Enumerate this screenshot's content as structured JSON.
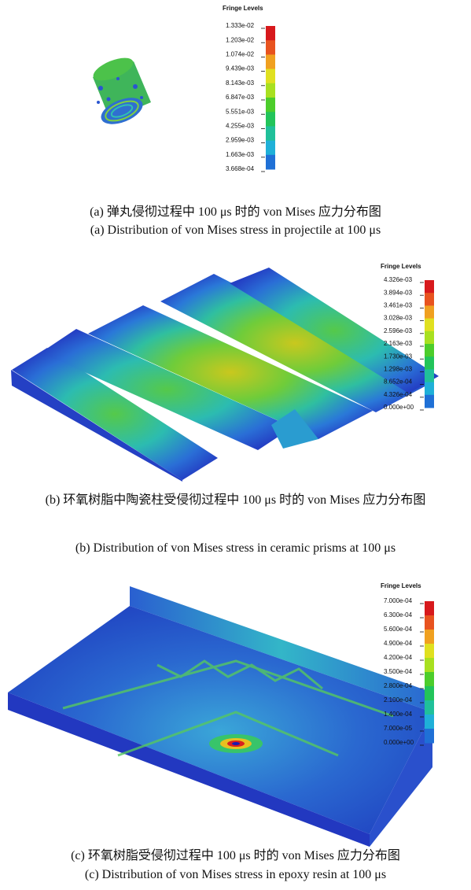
{
  "panels": [
    {
      "legend_title": "Fringe Levels",
      "levels": [
        "1.333e-02",
        "1.203e-02",
        "1.074e-02",
        "9.439e-03",
        "8.143e-03",
        "6.847e-03",
        "5.551e-03",
        "4.255e-03",
        "2.959e-03",
        "1.663e-03",
        "3.668e-04"
      ],
      "caption_cn": "(a) 弹丸侵彻过程中 100 μs 时的 von Mises 应力分布图",
      "caption_en": "(a) Distribution of von Mises stress in projectile at 100 μs"
    },
    {
      "legend_title": "Fringe Levels",
      "levels": [
        "4.326e-03",
        "3.894e-03",
        "3.461e-03",
        "3.028e-03",
        "2.596e-03",
        "2.163e-03",
        "1.730e-03",
        "1.298e-03",
        "8.652e-04",
        "4.326e-04",
        "0.000e+00"
      ],
      "caption_cn": "(b) 环氧树脂中陶瓷柱受侵彻过程中 100 μs 时的 von Mises 应力分布图",
      "caption_en": "(b) Distribution of von Mises stress in ceramic prisms at 100 μs"
    },
    {
      "legend_title": "Fringe Levels",
      "levels": [
        "7.000e-04",
        "6.300e-04",
        "5.600e-04",
        "4.900e-04",
        "4.200e-04",
        "3.500e-04",
        "2.800e-04",
        "2.100e-04",
        "1.400e-04",
        "7.000e-05",
        "0.000e+00"
      ],
      "caption_cn": "(c) 环氧树脂受侵彻过程中 100 μs 时的 von Mises 应力分布图",
      "caption_en": "(c) Distribution of von Mises stress in epoxy resin at 100 μs"
    }
  ]
}
